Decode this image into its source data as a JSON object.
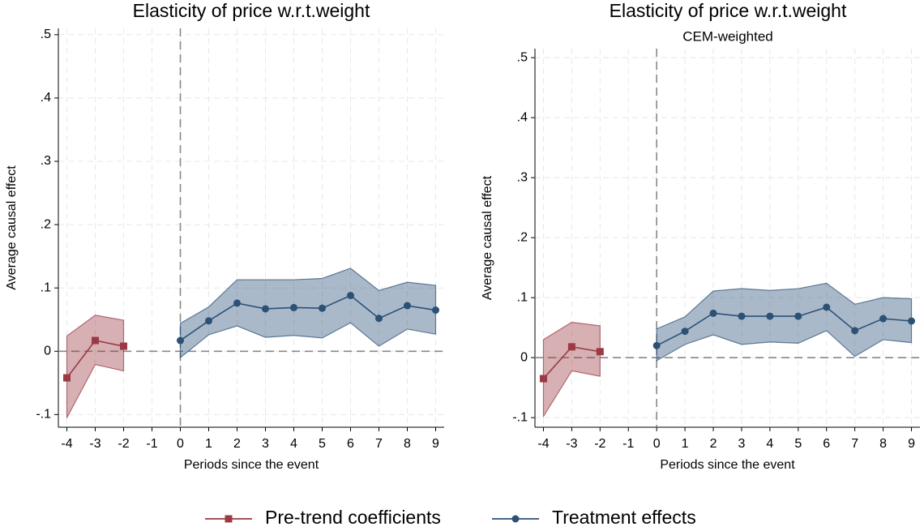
{
  "chart_data": [
    {
      "type": "line",
      "title": "Elasticity of price w.r.t.weight",
      "x_label": "Periods since the event",
      "y_label": "Average causal effect",
      "xlim": [
        -4.3,
        9.3
      ],
      "xticks": [
        -4,
        -3,
        -2,
        -1,
        0,
        1,
        2,
        3,
        4,
        5,
        6,
        7,
        8,
        9
      ],
      "ylim": [
        -0.12,
        0.51
      ],
      "yticks": [
        {
          "value": -0.1,
          "label": "-.1"
        },
        0,
        {
          "value": 0.1,
          "label": ".1"
        },
        {
          "value": 0.2,
          "label": ".2"
        },
        {
          "value": 0.3,
          "label": ".3"
        },
        {
          "value": 0.4,
          "label": ".4"
        },
        {
          "value": 0.5,
          "label": ".5"
        }
      ],
      "grid": true,
      "xline": 0,
      "yline": 0,
      "series": [
        {
          "name": "Pre-trend coefficients",
          "color": "#9b3a44",
          "marker": "square",
          "x": [
            -4,
            -3,
            -2
          ],
          "values": [
            -0.042,
            0.017,
            0.008
          ],
          "lower": [
            -0.105,
            -0.021,
            -0.031
          ],
          "upper": [
            0.024,
            0.057,
            0.049
          ]
        },
        {
          "name": "Treatment effects",
          "color": "#2b5177",
          "marker": "circle",
          "x": [
            0,
            1,
            2,
            3,
            4,
            5,
            6,
            7,
            8,
            9
          ],
          "values": [
            0.017,
            0.048,
            0.076,
            0.067,
            0.069,
            0.068,
            0.088,
            0.052,
            0.072,
            0.065
          ],
          "lower": [
            -0.01,
            0.026,
            0.04,
            0.022,
            0.025,
            0.021,
            0.045,
            0.008,
            0.035,
            0.027
          ],
          "upper": [
            0.044,
            0.07,
            0.113,
            0.113,
            0.113,
            0.115,
            0.131,
            0.096,
            0.109,
            0.104
          ]
        }
      ]
    },
    {
      "type": "line",
      "title": "Elasticity of price w.r.t.weight",
      "subtitle": "CEM-weighted",
      "x_label": "Periods since the event",
      "y_label": "Average causal effect",
      "xlim": [
        -4.3,
        9.3
      ],
      "xticks": [
        -4,
        -3,
        -2,
        -1,
        0,
        1,
        2,
        3,
        4,
        5,
        6,
        7,
        8,
        9
      ],
      "ylim": [
        -0.116,
        0.515
      ],
      "yticks": [
        {
          "value": -0.1,
          "label": "-.1"
        },
        0,
        {
          "value": 0.1,
          "label": ".1"
        },
        {
          "value": 0.2,
          "label": ".2"
        },
        {
          "value": 0.3,
          "label": ".3"
        },
        {
          "value": 0.4,
          "label": ".4"
        },
        {
          "value": 0.5,
          "label": ".5"
        }
      ],
      "grid": true,
      "xline": 0,
      "yline": 0,
      "series": [
        {
          "color": "#9b3a44",
          "marker": "square",
          "x": [
            -4,
            -3,
            -2
          ],
          "values": [
            -0.035,
            0.018,
            0.01
          ],
          "lower": [
            -0.098,
            -0.022,
            -0.031
          ],
          "upper": [
            0.03,
            0.059,
            0.053
          ]
        },
        {
          "color": "#2b5177",
          "marker": "circle",
          "x": [
            0,
            1,
            2,
            3,
            4,
            5,
            6,
            7,
            8,
            9
          ],
          "values": [
            0.02,
            0.044,
            0.074,
            0.069,
            0.069,
            0.069,
            0.084,
            0.045,
            0.065,
            0.061
          ],
          "lower": [
            -0.005,
            0.022,
            0.038,
            0.022,
            0.026,
            0.024,
            0.045,
            0.002,
            0.03,
            0.025
          ],
          "upper": [
            0.048,
            0.068,
            0.111,
            0.115,
            0.112,
            0.115,
            0.124,
            0.089,
            0.1,
            0.098
          ]
        }
      ]
    }
  ]
}
